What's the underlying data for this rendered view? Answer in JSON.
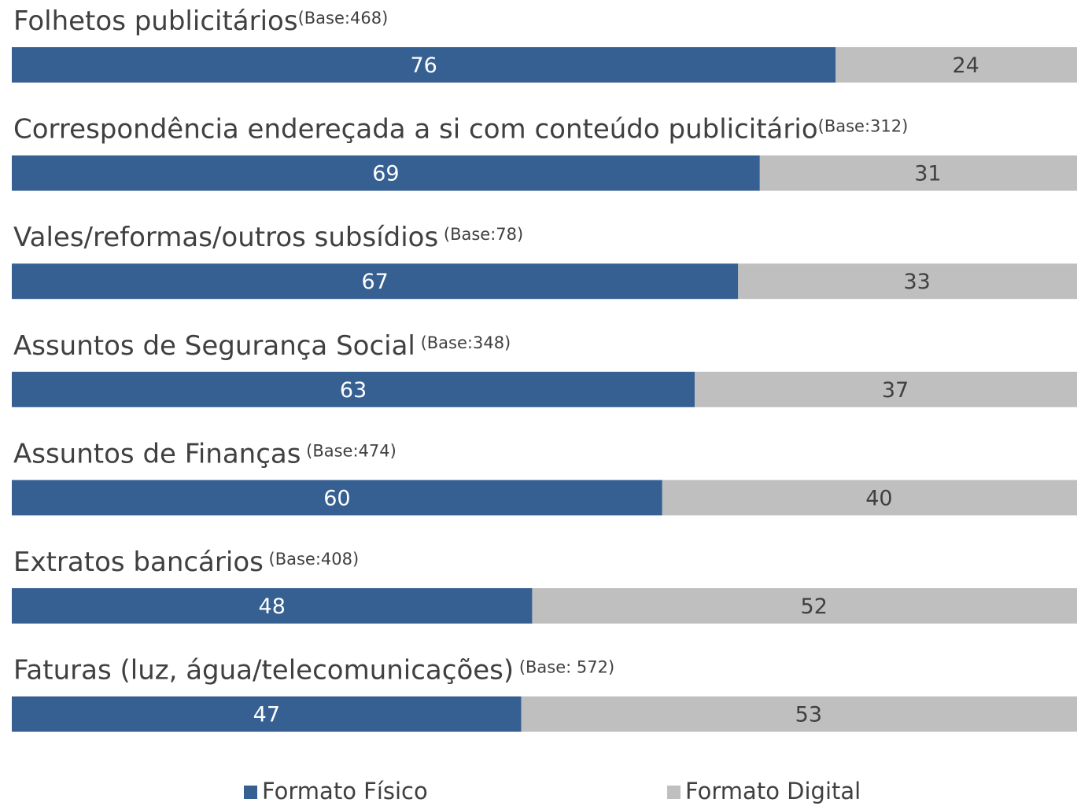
{
  "chart_data": {
    "type": "stacked_bar_horizontal",
    "categories": [
      "Folhetos publicitários",
      "Correspondência endereçada a si com conteúdo publicitário",
      "Vales/reformas/outros subsídios",
      "Assuntos de Segurança Social",
      "Assuntos de Finanças",
      "Extratos bancários",
      "Faturas (luz, água/telecomunicações)"
    ],
    "category_notes": [
      "(Base:468)",
      "(Base:312)",
      " (Base:78)",
      " (Base:348)",
      " (Base:474)",
      " (Base:408)",
      " (Base: 572)"
    ],
    "series": [
      {
        "name": "Formato Físico",
        "color": "#376092",
        "label_color": "#ffffff",
        "values": [
          76,
          69,
          67,
          63,
          60,
          48,
          47
        ]
      },
      {
        "name": "Formato Digital",
        "color": "#bfbfbf",
        "label_color": "#404040",
        "values": [
          24,
          31,
          33,
          37,
          40,
          52,
          53
        ]
      }
    ],
    "xlim": [
      0,
      100
    ]
  }
}
